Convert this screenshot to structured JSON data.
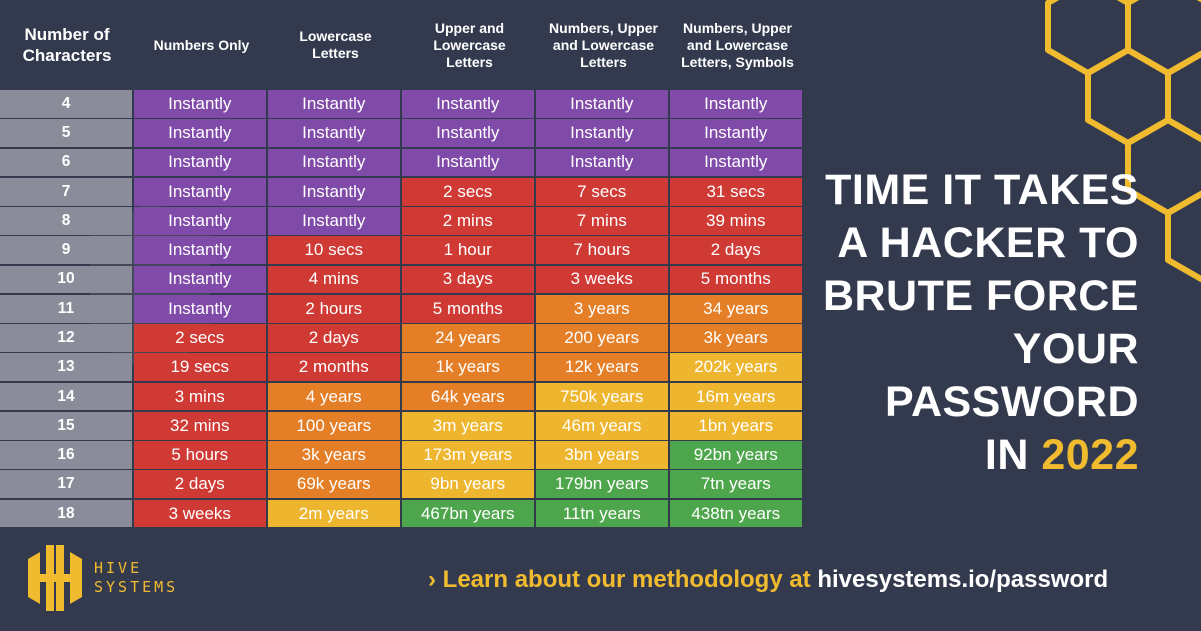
{
  "header": {
    "row_header": "Number of\nCharacters",
    "columns": [
      "Numbers Only",
      "Lowercase\nLetters",
      "Upper and\nLowercase\nLetters",
      "Numbers, Upper\nand Lowercase\nLetters",
      "Numbers, Upper\nand Lowercase\nLetters, Symbols"
    ]
  },
  "rows": [
    {
      "chars": "4",
      "cells": [
        [
          "Instantly",
          "purple"
        ],
        [
          "Instantly",
          "purple"
        ],
        [
          "Instantly",
          "purple"
        ],
        [
          "Instantly",
          "purple"
        ],
        [
          "Instantly",
          "purple"
        ]
      ]
    },
    {
      "chars": "5",
      "cells": [
        [
          "Instantly",
          "purple"
        ],
        [
          "Instantly",
          "purple"
        ],
        [
          "Instantly",
          "purple"
        ],
        [
          "Instantly",
          "purple"
        ],
        [
          "Instantly",
          "purple"
        ]
      ]
    },
    {
      "chars": "6",
      "cells": [
        [
          "Instantly",
          "purple"
        ],
        [
          "Instantly",
          "purple"
        ],
        [
          "Instantly",
          "purple"
        ],
        [
          "Instantly",
          "purple"
        ],
        [
          "Instantly",
          "purple"
        ]
      ]
    },
    {
      "chars": "7",
      "cells": [
        [
          "Instantly",
          "purple"
        ],
        [
          "Instantly",
          "purple"
        ],
        [
          "2 secs",
          "red"
        ],
        [
          "7 secs",
          "red"
        ],
        [
          "31 secs",
          "red"
        ]
      ]
    },
    {
      "chars": "8",
      "cells": [
        [
          "Instantly",
          "purple"
        ],
        [
          "Instantly",
          "purple"
        ],
        [
          "2 mins",
          "red"
        ],
        [
          "7 mins",
          "red"
        ],
        [
          "39 mins",
          "red"
        ]
      ]
    },
    {
      "chars": "9",
      "cells": [
        [
          "Instantly",
          "purple"
        ],
        [
          "10 secs",
          "red"
        ],
        [
          "1 hour",
          "red"
        ],
        [
          "7 hours",
          "red"
        ],
        [
          "2 days",
          "red"
        ]
      ]
    },
    {
      "chars": "10",
      "cells": [
        [
          "Instantly",
          "purple"
        ],
        [
          "4 mins",
          "red"
        ],
        [
          "3 days",
          "red"
        ],
        [
          "3 weeks",
          "red"
        ],
        [
          "5 months",
          "red"
        ]
      ]
    },
    {
      "chars": "11",
      "cells": [
        [
          "Instantly",
          "purple"
        ],
        [
          "2 hours",
          "red"
        ],
        [
          "5 months",
          "red"
        ],
        [
          "3 years",
          "orange"
        ],
        [
          "34 years",
          "orange"
        ]
      ]
    },
    {
      "chars": "12",
      "cells": [
        [
          "2 secs",
          "red"
        ],
        [
          "2 days",
          "red"
        ],
        [
          "24 years",
          "orange"
        ],
        [
          "200 years",
          "orange"
        ],
        [
          "3k years",
          "orange"
        ]
      ]
    },
    {
      "chars": "13",
      "cells": [
        [
          "19 secs",
          "red"
        ],
        [
          "2 months",
          "red"
        ],
        [
          "1k years",
          "orange"
        ],
        [
          "12k years",
          "orange"
        ],
        [
          "202k years",
          "yellow"
        ]
      ]
    },
    {
      "chars": "14",
      "cells": [
        [
          "3 mins",
          "red"
        ],
        [
          "4 years",
          "orange"
        ],
        [
          "64k years",
          "orange"
        ],
        [
          "750k years",
          "yellow"
        ],
        [
          "16m years",
          "yellow"
        ]
      ]
    },
    {
      "chars": "15",
      "cells": [
        [
          "32 mins",
          "red"
        ],
        [
          "100 years",
          "orange"
        ],
        [
          "3m years",
          "yellow"
        ],
        [
          "46m years",
          "yellow"
        ],
        [
          "1bn years",
          "yellow"
        ]
      ]
    },
    {
      "chars": "16",
      "cells": [
        [
          "5 hours",
          "red"
        ],
        [
          "3k years",
          "orange"
        ],
        [
          "173m years",
          "yellow"
        ],
        [
          "3bn years",
          "yellow"
        ],
        [
          "92bn years",
          "green"
        ]
      ]
    },
    {
      "chars": "17",
      "cells": [
        [
          "2 days",
          "red"
        ],
        [
          "69k years",
          "orange"
        ],
        [
          "9bn years",
          "yellow"
        ],
        [
          "179bn years",
          "green"
        ],
        [
          "7tn years",
          "green"
        ]
      ]
    },
    {
      "chars": "18",
      "cells": [
        [
          "3 weeks",
          "red"
        ],
        [
          "2m years",
          "yellow"
        ],
        [
          "467bn years",
          "green"
        ],
        [
          "11tn years",
          "green"
        ],
        [
          "438tn years",
          "green"
        ]
      ]
    }
  ],
  "colors": {
    "purple": "#7f4aa8",
    "red": "#cf3a35",
    "orange": "#e47f27",
    "yellow": "#eeb62e",
    "green": "#4ea64c",
    "background": "#343a4e",
    "accent": "#f1bb2f"
  },
  "title": {
    "line1": "TIME IT TAKES",
    "line2": "A HACKER TO",
    "line3": "BRUTE FORCE",
    "line4": "YOUR",
    "line5": "PASSWORD",
    "line6_prefix": "IN ",
    "year": "2022"
  },
  "footer": {
    "logo_line1": "HIVE",
    "logo_line2": "SYSTEMS",
    "chevron": "›",
    "method_text": "Learn about our methodology at ",
    "url": "hivesystems.io/password"
  },
  "icons": {
    "logo": "hive-logo-icon",
    "decor": "honeycomb-icon"
  }
}
